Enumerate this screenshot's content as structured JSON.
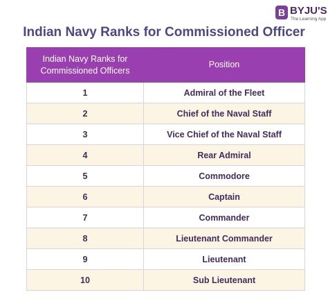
{
  "logo": {
    "mark": "B",
    "name": "BYJU'S",
    "tagline": "The Learning App"
  },
  "title": "Indian Navy Ranks for Commissioned Officer",
  "table": {
    "header": [
      "Indian Navy Ranks for Commissioned Officers",
      "Position"
    ],
    "rows": [
      [
        "1",
        "Admiral of the Fleet"
      ],
      [
        "2",
        "Chief of the Naval Staff"
      ],
      [
        "3",
        "Vice Chief of the Naval Staff"
      ],
      [
        "4",
        "Rear Admiral"
      ],
      [
        "5",
        "Commodore"
      ],
      [
        "6",
        "Captain"
      ],
      [
        "7",
        "Commander"
      ],
      [
        "8",
        "Lieutenant Commander"
      ],
      [
        "9",
        "Lieutenant"
      ],
      [
        "10",
        "Sub Lieutenant"
      ]
    ]
  }
}
